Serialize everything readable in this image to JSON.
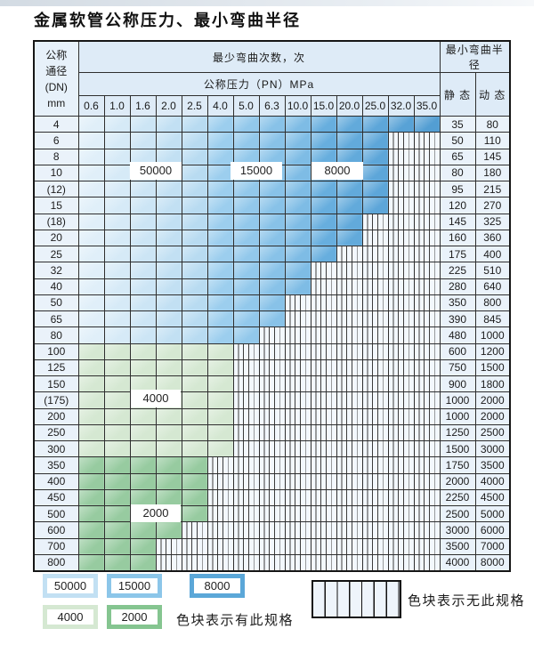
{
  "page": {
    "title": "金属软管公称压力、最小弯曲半径"
  },
  "table": {
    "header": {
      "dn_label_lines": [
        "公称",
        "通径",
        "(DN)",
        "mm"
      ],
      "cycles_label": "最少弯曲次数，次",
      "radius_label": "最小弯曲半径",
      "pressure_label": "公称压力（PN）MPa",
      "static_label": "静 态",
      "dynamic_label": "动 态",
      "pressure_columns": [
        "0.6",
        "1.0",
        "1.6",
        "2.0",
        "2.5",
        "4.0",
        "5.0",
        "6.3",
        "10.0",
        "15.0",
        "20.0",
        "25.0",
        "32.0",
        "35.0"
      ]
    },
    "rows": [
      {
        "dn": "4",
        "colored": 14,
        "zone": "blue",
        "static": "35",
        "dynamic": "80"
      },
      {
        "dn": "6",
        "colored": 12,
        "zone": "blue",
        "static": "50",
        "dynamic": "110"
      },
      {
        "dn": "8",
        "colored": 12,
        "zone": "blue",
        "static": "65",
        "dynamic": "145"
      },
      {
        "dn": "10",
        "colored": 12,
        "zone": "blue",
        "static": "80",
        "dynamic": "180"
      },
      {
        "dn": "(12)",
        "colored": 12,
        "zone": "blue",
        "static": "95",
        "dynamic": "215"
      },
      {
        "dn": "15",
        "colored": 12,
        "zone": "blue",
        "static": "120",
        "dynamic": "270"
      },
      {
        "dn": "(18)",
        "colored": 11,
        "zone": "blue",
        "static": "145",
        "dynamic": "325"
      },
      {
        "dn": "20",
        "colored": 11,
        "zone": "blue",
        "static": "160",
        "dynamic": "360"
      },
      {
        "dn": "25",
        "colored": 10,
        "zone": "blue",
        "static": "175",
        "dynamic": "400"
      },
      {
        "dn": "32",
        "colored": 9,
        "zone": "blue",
        "static": "225",
        "dynamic": "510"
      },
      {
        "dn": "40",
        "colored": 9,
        "zone": "blue",
        "static": "280",
        "dynamic": "640"
      },
      {
        "dn": "50",
        "colored": 8,
        "zone": "blue",
        "static": "350",
        "dynamic": "800"
      },
      {
        "dn": "65",
        "colored": 8,
        "zone": "blue",
        "static": "390",
        "dynamic": "845"
      },
      {
        "dn": "80",
        "colored": 7,
        "zone": "blue",
        "static": "480",
        "dynamic": "1000"
      },
      {
        "dn": "100",
        "colored": 6,
        "zone": "green_light",
        "static": "600",
        "dynamic": "1200"
      },
      {
        "dn": "125",
        "colored": 6,
        "zone": "green_light",
        "static": "750",
        "dynamic": "1500"
      },
      {
        "dn": "150",
        "colored": 6,
        "zone": "green_light",
        "static": "900",
        "dynamic": "1800"
      },
      {
        "dn": "(175)",
        "colored": 6,
        "zone": "green_light",
        "static": "1000",
        "dynamic": "2000"
      },
      {
        "dn": "200",
        "colored": 6,
        "zone": "green_light",
        "static": "1000",
        "dynamic": "2000"
      },
      {
        "dn": "250",
        "colored": 6,
        "zone": "green_light",
        "static": "1250",
        "dynamic": "2500"
      },
      {
        "dn": "300",
        "colored": 6,
        "zone": "green_light",
        "static": "1500",
        "dynamic": "3000"
      },
      {
        "dn": "350",
        "colored": 5,
        "zone": "green_mid",
        "static": "1750",
        "dynamic": "3500"
      },
      {
        "dn": "400",
        "colored": 5,
        "zone": "green_mid",
        "static": "2000",
        "dynamic": "4000"
      },
      {
        "dn": "450",
        "colored": 5,
        "zone": "green_mid",
        "static": "2250",
        "dynamic": "4500"
      },
      {
        "dn": "500",
        "colored": 5,
        "zone": "green_mid",
        "static": "2500",
        "dynamic": "5000"
      },
      {
        "dn": "600",
        "colored": 4,
        "zone": "green_mid",
        "static": "3000",
        "dynamic": "6000"
      },
      {
        "dn": "700",
        "colored": 3,
        "zone": "green_mid",
        "static": "3500",
        "dynamic": "7000"
      },
      {
        "dn": "800",
        "colored": 3,
        "zone": "green_mid",
        "static": "4000",
        "dynamic": "8000"
      }
    ]
  },
  "overlay_labels": [
    {
      "id": "lbl-50000",
      "text": "50000"
    },
    {
      "id": "lbl-15000",
      "text": "15000"
    },
    {
      "id": "lbl-8000",
      "text": "8000"
    },
    {
      "id": "lbl-4000",
      "text": "4000"
    },
    {
      "id": "lbl-2000",
      "text": "2000"
    }
  ],
  "legend": {
    "blocks": [
      {
        "value": "50000",
        "color": "blue_light"
      },
      {
        "value": "15000",
        "color": "blue_mid"
      },
      {
        "value": "8000",
        "color": "blue_dark"
      },
      {
        "value": "4000",
        "color": "green_light"
      },
      {
        "value": "2000",
        "color": "green_mid_legend"
      }
    ],
    "has_spec_text": "色块表示有此规格",
    "no_spec_text": "色块表示无此规格"
  },
  "colors": {
    "blue_shades": [
      "#e0eff9",
      "#d6eaf7",
      "#cce5f5",
      "#c2e0f3",
      "#b8dbf1",
      "#9cceee",
      "#92c8eb",
      "#88c2e8",
      "#7ebce5",
      "#67aede",
      "#62aadb",
      "#5da6d9",
      "#58a2d6",
      "#539ed3"
    ],
    "green_light": "#d5e8d2",
    "green_mid": "#97cba0",
    "blue_light": "#c2e0f3",
    "blue_mid": "#8cc6e9",
    "blue_dark": "#5ba7d8",
    "green_mid_legend": "#85c590",
    "hatch_bg": "#f3f8fd",
    "hatch_line": "#3c3c3c"
  }
}
